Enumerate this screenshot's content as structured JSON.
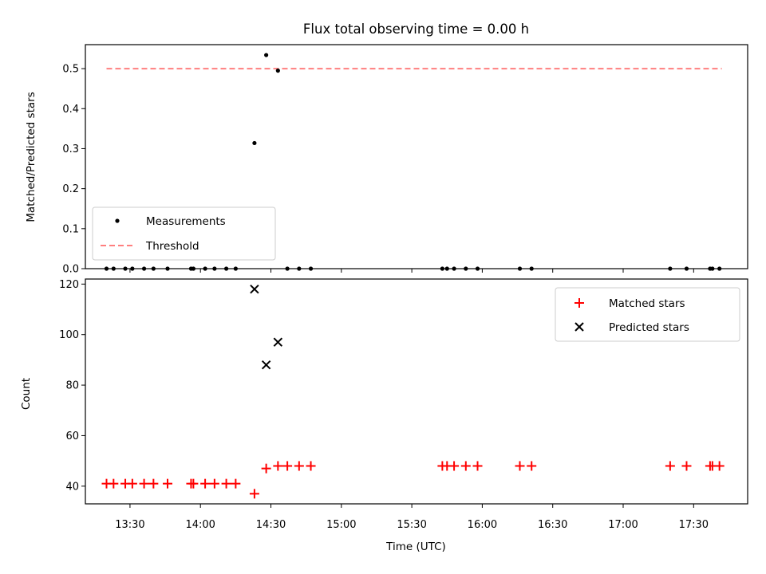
{
  "chart_data": [
    {
      "type": "scatter",
      "title": "Flux total observing time = 0.00 h",
      "xlabel": "",
      "ylabel": "Matched/Predicted stars",
      "xlim": [
        "13:11",
        "17:53"
      ],
      "ylim": [
        0,
        0.56
      ],
      "yticks": [
        0.0,
        0.1,
        0.2,
        0.3,
        0.4,
        0.5
      ],
      "ytick_labels": [
        "0.0",
        "0.1",
        "0.2",
        "0.3",
        "0.4",
        "0.5"
      ],
      "grid": false,
      "legend": "lower-left",
      "series": [
        {
          "name": "Measurements",
          "marker": "dot",
          "color": "#000000",
          "x": [
            "13:20",
            "13:23",
            "13:28",
            "13:31",
            "13:36",
            "13:40",
            "13:46",
            "13:56",
            "13:57",
            "14:02",
            "14:06",
            "14:11",
            "14:15",
            "14:23",
            "14:28",
            "14:33",
            "14:37",
            "14:42",
            "14:47",
            "15:43",
            "15:45",
            "15:48",
            "15:53",
            "15:58",
            "16:16",
            "16:21",
            "17:20",
            "17:27",
            "17:37",
            "17:38",
            "17:41"
          ],
          "y": [
            0,
            0,
            0,
            0,
            0,
            0,
            0,
            0,
            0,
            0,
            0,
            0,
            0,
            0.314,
            0.534,
            0.495,
            0,
            0,
            0,
            0,
            0,
            0,
            0,
            0,
            0,
            0,
            0,
            0,
            0,
            0,
            0
          ]
        },
        {
          "name": "Threshold",
          "style": "dashed-line",
          "color": "#ff7f7f",
          "x": [
            "13:20",
            "17:42"
          ],
          "y": [
            0.5,
            0.5
          ]
        }
      ]
    },
    {
      "type": "scatter",
      "title": "",
      "xlabel": "Time (UTC)",
      "ylabel": "Count",
      "xlim": [
        "13:11",
        "17:53"
      ],
      "ylim": [
        33,
        122
      ],
      "xtick_labels": [
        "13:30",
        "14:00",
        "14:30",
        "15:00",
        "15:30",
        "16:00",
        "16:30",
        "17:00",
        "17:30"
      ],
      "yticks": [
        40,
        60,
        80,
        100,
        120
      ],
      "ytick_labels": [
        "40",
        "60",
        "80",
        "100",
        "120"
      ],
      "grid": false,
      "legend": "upper-right",
      "series": [
        {
          "name": "Matched stars",
          "marker": "plus",
          "color": "#ff0000",
          "x": [
            "13:20",
            "13:23",
            "13:28",
            "13:31",
            "13:36",
            "13:40",
            "13:46",
            "13:56",
            "13:57",
            "14:02",
            "14:06",
            "14:11",
            "14:15",
            "14:23",
            "14:28",
            "14:33",
            "14:37",
            "14:42",
            "14:47",
            "15:43",
            "15:45",
            "15:48",
            "15:53",
            "15:58",
            "16:16",
            "16:21",
            "17:20",
            "17:27",
            "17:37",
            "17:38",
            "17:41"
          ],
          "y": [
            41,
            41,
            41,
            41,
            41,
            41,
            41,
            41,
            41,
            41,
            41,
            41,
            41,
            37,
            47,
            48,
            48,
            48,
            48,
            48,
            48,
            48,
            48,
            48,
            48,
            48,
            48,
            48,
            48,
            48,
            48
          ]
        },
        {
          "name": "Predicted stars",
          "marker": "x",
          "color": "#000000",
          "x": [
            "13:20",
            "13:23",
            "13:28",
            "13:31",
            "13:36",
            "13:40",
            "13:46",
            "13:56",
            "13:57",
            "14:02",
            "14:06",
            "14:11",
            "14:15",
            "14:23",
            "14:28",
            "14:33",
            "14:37",
            "14:42",
            "14:47",
            "15:43",
            "15:45",
            "15:48",
            "15:53",
            "15:58",
            "16:16",
            "16:21",
            "17:20",
            "17:27",
            "17:37",
            "17:38",
            "17:41"
          ],
          "y": [
            null,
            null,
            null,
            null,
            null,
            null,
            null,
            null,
            null,
            null,
            null,
            null,
            null,
            118,
            88,
            97,
            null,
            null,
            null,
            null,
            null,
            null,
            null,
            null,
            null,
            null,
            null,
            null,
            null,
            null,
            null
          ]
        }
      ]
    }
  ]
}
